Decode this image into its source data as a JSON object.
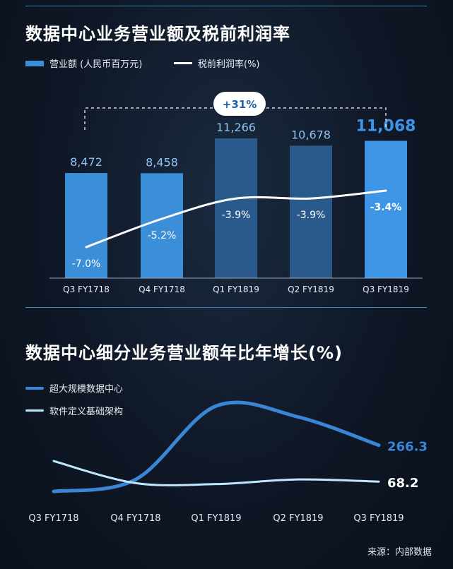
{
  "chart_data": [
    {
      "type": "bar",
      "title": "数据中心业务营业额及税前利润率",
      "categories": [
        "Q3 FY1718",
        "Q4 FY1718",
        "Q1 FY1819",
        "Q2 FY1819",
        "Q3 FY1819"
      ],
      "series": [
        {
          "name": "营业额 (人民币百万元)",
          "type": "bar",
          "values": [
            8472,
            8458,
            11266,
            10678,
            11068
          ],
          "labels": [
            "8,472",
            "8,458",
            "11,266",
            "10,678",
            "11,068"
          ]
        },
        {
          "name": "税前利润率(%)",
          "type": "line",
          "values": [
            -7.0,
            -5.2,
            -3.9,
            -3.9,
            -3.4
          ],
          "labels": [
            "-7.0%",
            "-5.2%",
            "-3.9%",
            "-3.9%",
            "-3.4%"
          ]
        }
      ],
      "annotation": "+31%",
      "colors": {
        "bar": "#3b8fd9",
        "bar_dim": "#2a5a8c",
        "bar_highlight": "#3e95e6",
        "line": "#ffffff"
      }
    },
    {
      "type": "line",
      "title": "数据中心细分业务营业额年比年增长(%)",
      "categories": [
        "Q3 FY1718",
        "Q4 FY1718",
        "Q1 FY1819",
        "Q2 FY1819",
        "Q3 FY1819"
      ],
      "series": [
        {
          "name": "超大规模数据中心",
          "values": [
            15,
            80,
            480,
            420,
            266.3
          ],
          "end_label": "266.3",
          "color": "#3a86d6"
        },
        {
          "name": "软件定义基础架构",
          "values": [
            180,
            60,
            55,
            80,
            68.2
          ],
          "end_label": "68.2",
          "color": "#bfe8ff"
        }
      ]
    }
  ],
  "source": "来源：内部数据"
}
